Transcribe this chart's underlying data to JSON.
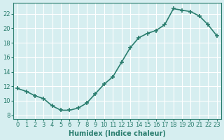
{
  "x": [
    0,
    1,
    2,
    3,
    4,
    5,
    6,
    7,
    8,
    9,
    10,
    11,
    12,
    13,
    14,
    15,
    16,
    17,
    18,
    19,
    20,
    21,
    22,
    23
  ],
  "y": [
    11.7,
    11.3,
    10.7,
    10.3,
    9.3,
    8.7,
    8.7,
    9.0,
    9.7,
    11.0,
    12.3,
    13.3,
    15.3,
    17.3,
    18.7,
    19.3,
    19.7,
    20.5,
    22.7,
    22.5,
    22.3,
    21.7,
    20.5,
    19.0
  ],
  "line_color": "#2a7d6e",
  "marker": "+",
  "marker_size": 4,
  "bg_color": "#d6eef0",
  "grid_color": "#ffffff",
  "xlabel": "Humidex (Indice chaleur)",
  "xlim": [
    -0.5,
    23.5
  ],
  "ylim": [
    7.5,
    23.5
  ],
  "yticks": [
    8,
    10,
    12,
    14,
    16,
    18,
    20,
    22
  ],
  "xticks": [
    0,
    1,
    2,
    3,
    4,
    5,
    6,
    7,
    8,
    9,
    10,
    11,
    12,
    13,
    14,
    15,
    16,
    17,
    18,
    19,
    20,
    21,
    22,
    23
  ],
  "tick_label_size": 6,
  "xlabel_size": 7,
  "line_width": 1.2
}
